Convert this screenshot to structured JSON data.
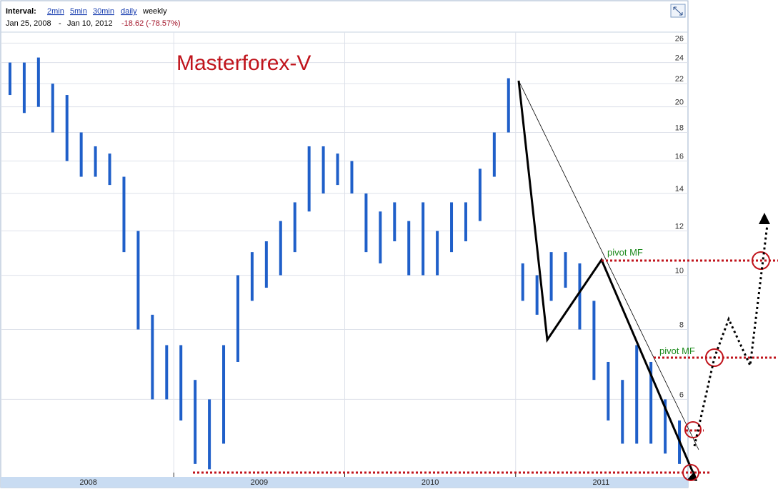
{
  "header": {
    "interval_label": "Interval:",
    "links": [
      "2min",
      "5min",
      "30min",
      "daily"
    ],
    "current": "weekly",
    "start_date": "Jan 25, 2008",
    "separator": "-",
    "end_date": "Jan 10, 2012",
    "change": "-18.62 (-78.57%)"
  },
  "chart_data": {
    "type": "range-bar",
    "title": "Masterforex-V",
    "annotations": [
      "pivot MF",
      "pivot MF"
    ],
    "categories": [
      "2008",
      "2009",
      "2010",
      "2011"
    ],
    "low": [
      21,
      19.5,
      20,
      18,
      16,
      15,
      15,
      14.5,
      11,
      8,
      6,
      6,
      5.5,
      4.6,
      4.5,
      5,
      7,
      9,
      9.5,
      10,
      11,
      13,
      14,
      14.5,
      14,
      11,
      10.5,
      11.5,
      10,
      10,
      10,
      11,
      11.5,
      12.5,
      15,
      18,
      9,
      8.5,
      9,
      9.5,
      8,
      6.5,
      5.5,
      5,
      5,
      5,
      4.8,
      4.6
    ],
    "high": [
      24,
      24,
      24.5,
      22,
      21,
      18,
      17,
      16.5,
      15,
      12,
      8.5,
      7.5,
      7.5,
      6.5,
      6,
      7.5,
      10,
      11,
      11.5,
      12.5,
      13.5,
      17,
      17,
      16.5,
      16,
      14,
      13,
      13.5,
      12.5,
      13.5,
      12,
      13.5,
      13.5,
      15.5,
      18,
      22.5,
      10.5,
      10,
      11,
      11,
      10.5,
      9,
      7,
      6.5,
      7.5,
      7,
      6,
      5.5
    ],
    "color": "#1f5fc9",
    "log_scale": true,
    "grid": true,
    "ylim": [
      4.4,
      27.2
    ],
    "yticks": [
      6,
      8,
      10,
      12,
      14,
      16,
      18,
      20,
      22,
      24,
      26
    ]
  }
}
